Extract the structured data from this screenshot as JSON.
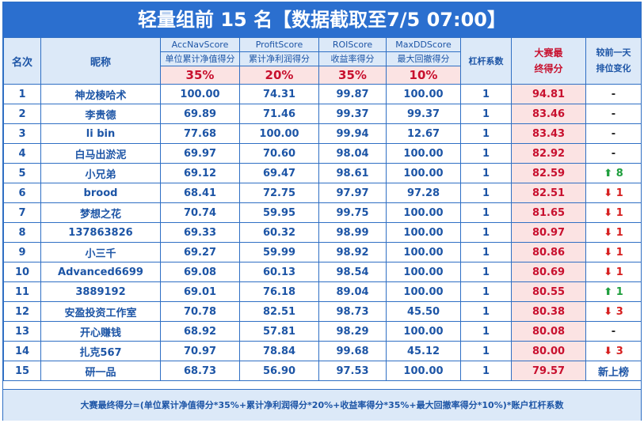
{
  "title": "轻量组前 15 名【数据截取至7/5 07:00】",
  "headers": {
    "rank": "名次",
    "nickname": "昵称",
    "acc_en": "AccNavScore",
    "acc_cn": "单位累计净值得分",
    "acc_pct": "35%",
    "profit_en": "ProfitScore",
    "profit_cn": "累计净利润得分",
    "profit_pct": "20%",
    "roi_en": "ROIScore",
    "roi_cn": "收益率得分",
    "roi_pct": "35%",
    "maxdd_en": "MaxDDScore",
    "maxdd_cn": "最大回撤得分",
    "maxdd_pct": "10%",
    "leverage": "杠杆系数",
    "final_line1": "大赛最",
    "final_line2": "终得分",
    "change_line1": "较前一天",
    "change_line2": "排位变化"
  },
  "rows": [
    {
      "rank": "1",
      "name": "神龙棱哈术",
      "acc": "100.00",
      "profit": "74.31",
      "roi": "99.87",
      "maxdd": "100.00",
      "lev": "1",
      "final": "94.81",
      "change": "-",
      "dir": "none"
    },
    {
      "rank": "2",
      "name": "李贵德",
      "acc": "69.89",
      "profit": "71.46",
      "roi": "99.37",
      "maxdd": "99.37",
      "lev": "1",
      "final": "83.46",
      "change": "-",
      "dir": "none"
    },
    {
      "rank": "3",
      "name": "li bin",
      "acc": "77.68",
      "profit": "100.00",
      "roi": "99.94",
      "maxdd": "12.67",
      "lev": "1",
      "final": "83.43",
      "change": "-",
      "dir": "none"
    },
    {
      "rank": "4",
      "name": "白马出淤泥",
      "acc": "69.97",
      "profit": "70.60",
      "roi": "98.04",
      "maxdd": "100.00",
      "lev": "1",
      "final": "82.92",
      "change": "-",
      "dir": "none"
    },
    {
      "rank": "5",
      "name": "小兄弟",
      "acc": "69.12",
      "profit": "69.47",
      "roi": "98.61",
      "maxdd": "100.00",
      "lev": "1",
      "final": "82.59",
      "change": "8",
      "dir": "up"
    },
    {
      "rank": "6",
      "name": "brood",
      "acc": "68.41",
      "profit": "72.75",
      "roi": "97.97",
      "maxdd": "97.28",
      "lev": "1",
      "final": "82.51",
      "change": "1",
      "dir": "down"
    },
    {
      "rank": "7",
      "name": "梦想之花",
      "acc": "70.74",
      "profit": "59.95",
      "roi": "99.75",
      "maxdd": "100.00",
      "lev": "1",
      "final": "81.65",
      "change": "1",
      "dir": "down"
    },
    {
      "rank": "8",
      "name": "137863826",
      "acc": "69.33",
      "profit": "60.32",
      "roi": "98.99",
      "maxdd": "100.00",
      "lev": "1",
      "final": "80.97",
      "change": "1",
      "dir": "down"
    },
    {
      "rank": "9",
      "name": "小三千",
      "acc": "69.27",
      "profit": "59.99",
      "roi": "98.92",
      "maxdd": "100.00",
      "lev": "1",
      "final": "80.86",
      "change": "1",
      "dir": "down"
    },
    {
      "rank": "10",
      "name": "Advanced6699",
      "acc": "69.08",
      "profit": "60.13",
      "roi": "98.54",
      "maxdd": "100.00",
      "lev": "1",
      "final": "80.69",
      "change": "1",
      "dir": "down"
    },
    {
      "rank": "11",
      "name": "3889192",
      "acc": "69.01",
      "profit": "76.18",
      "roi": "89.04",
      "maxdd": "100.00",
      "lev": "1",
      "final": "80.55",
      "change": "1",
      "dir": "up"
    },
    {
      "rank": "12",
      "name": "安盈投资工作室",
      "acc": "70.78",
      "profit": "82.51",
      "roi": "98.73",
      "maxdd": "45.50",
      "lev": "1",
      "final": "80.38",
      "change": "3",
      "dir": "down"
    },
    {
      "rank": "13",
      "name": "开心赚钱",
      "acc": "68.92",
      "profit": "57.81",
      "roi": "98.29",
      "maxdd": "100.00",
      "lev": "1",
      "final": "80.08",
      "change": "-",
      "dir": "none"
    },
    {
      "rank": "14",
      "name": "扎克567",
      "acc": "70.97",
      "profit": "78.84",
      "roi": "99.68",
      "maxdd": "45.12",
      "lev": "1",
      "final": "80.00",
      "change": "3",
      "dir": "down"
    },
    {
      "rank": "15",
      "name": "研一品",
      "acc": "68.73",
      "profit": "56.90",
      "roi": "97.53",
      "maxdd": "100.00",
      "lev": "1",
      "final": "79.57",
      "change": "新上榜",
      "dir": "new"
    }
  ],
  "footer": "大赛最终得分=(单位累计净值得分*35%+累计净利润得分*20%+收益率得分*35%+最大回撤率得分*10%)*账户杠杆系数",
  "colors": {
    "accent": "#2b6fcf",
    "header_bg": "#dce9f8",
    "highlight_red": "#c8102e",
    "up_green": "#1e9e3c",
    "down_red": "#d61f1f"
  }
}
